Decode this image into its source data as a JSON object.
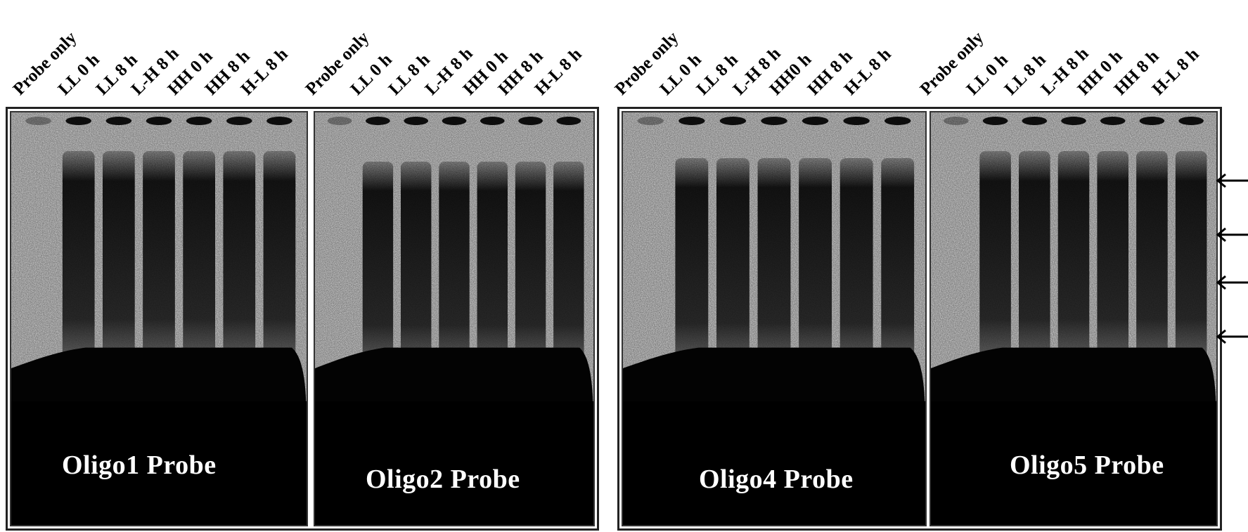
{
  "gels": [
    {
      "lanes": [
        "Probe only",
        "LL 0 h",
        "LL 8 h",
        "L-H 8 h",
        "HH 0 h",
        "HH 8 h",
        "H-L 8 h"
      ],
      "title": "Oligo1 Probe"
    },
    {
      "lanes": [
        "Probe only",
        "LL 0 h",
        "LL 8 h",
        "L-H 8 h",
        "HH 0 h",
        "HH 8 h",
        "H-L 8 h"
      ],
      "title": "Oligo2 Probe"
    },
    {
      "lanes": [
        "Probe only",
        "LL 0 h",
        "LL 8 h",
        "L-H 8 h",
        "HH0 h",
        "HH 8 h",
        "H-L 8 h"
      ],
      "title": "Oligo4 Probe"
    },
    {
      "lanes": [
        "Probe only",
        "LL 0 h",
        "LL 8 h",
        "L-H 8 h",
        "HH 0 h",
        "HH 8 h",
        "H-L 8 h"
      ],
      "title": "Oligo5 Probe"
    }
  ],
  "arrows": {
    "count": 4,
    "direction": "left",
    "color": "#000000"
  },
  "colors": {
    "gel_background": "#c8c8c8",
    "band": "#050505",
    "frame": "#222222"
  }
}
